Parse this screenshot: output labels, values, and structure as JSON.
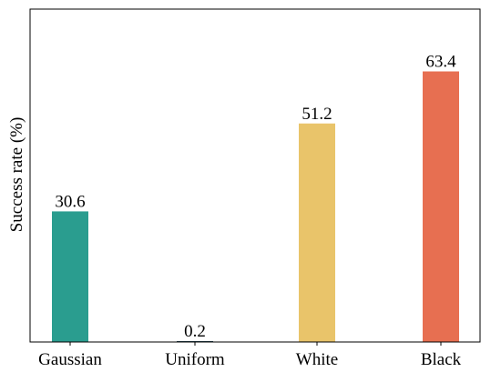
{
  "chart_data": {
    "type": "bar",
    "categories": [
      "Gaussian",
      "Uniform",
      "White",
      "Black"
    ],
    "values": [
      30.6,
      0.2,
      51.2,
      63.4
    ],
    "data_labels": [
      "30.6",
      "0.2",
      "51.2",
      "63.4"
    ],
    "colors": [
      "#2a9d8f",
      "#264653",
      "#e9c46a",
      "#e76f51"
    ],
    "title": "",
    "xlabel": "",
    "ylabel": "Success rate (%)",
    "ylim": [
      0,
      78
    ],
    "grid": false,
    "legend": "none"
  }
}
